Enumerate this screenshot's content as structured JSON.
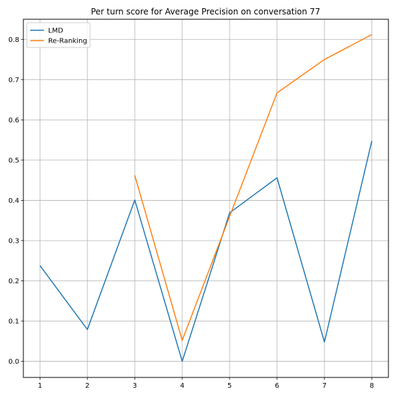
{
  "chart_data": {
    "type": "line",
    "title": "Per turn score for Average Precision on conversation 77",
    "xlabel": "",
    "ylabel": "",
    "x": [
      1,
      2,
      3,
      4,
      5,
      6,
      7,
      8
    ],
    "xlim": [
      0.65,
      8.35
    ],
    "ylim": [
      -0.04,
      0.85
    ],
    "xticks": [
      "1",
      "2",
      "3",
      "4",
      "5",
      "6",
      "7",
      "8"
    ],
    "yticks": [
      "0.0",
      "0.1",
      "0.2",
      "0.3",
      "0.4",
      "0.5",
      "0.6",
      "0.7",
      "0.8"
    ],
    "grid": true,
    "legend": "top-left",
    "series": [
      {
        "name": "LMD",
        "color": "#1f77b4",
        "values": [
          0.238,
          0.079,
          0.401,
          0.0,
          0.369,
          0.456,
          0.048,
          0.548
        ]
      },
      {
        "name": "Re-Ranking",
        "color": "#ff7f0e",
        "values": [
          null,
          null,
          0.462,
          0.052,
          0.36,
          0.667,
          0.75,
          0.812
        ]
      }
    ]
  }
}
